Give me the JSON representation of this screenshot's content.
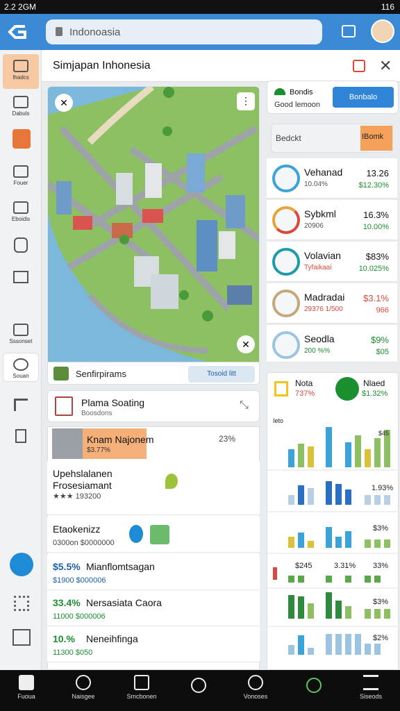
{
  "status_bar": {
    "time": "2.2 2GM",
    "battery": "116"
  },
  "top_bar": {
    "search": "Indonoasia"
  },
  "sidebar": {
    "items": [
      "Ihadcs",
      "Dabuls",
      "Fouer",
      "Eboidis",
      "Sssonset",
      "Souan"
    ]
  },
  "header": {
    "title": "Simjapan Inhonesia"
  },
  "map_card": {
    "footer": "Senfirpirams",
    "button": "Tosoid litt"
  },
  "search_card": {
    "title": "Plama Soating",
    "subtitle": "Boosdons"
  },
  "list": {
    "header": {
      "title": "Knam Najonem",
      "value": "$3.77%",
      "badge": "23%"
    },
    "items": [
      {
        "value": "",
        "title": "Upehslalanen Frosesiamant",
        "sub": "★★★ 193200"
      },
      {
        "value": "",
        "title": "Etaokenizz",
        "sub": "0300on $0000000"
      },
      {
        "value": "$5.5%",
        "title": "Mianflomtsagan",
        "sub": "$1900 $000006"
      },
      {
        "value": "33.4%",
        "title": "Nersasiata Caora",
        "sub": "11000 $000006"
      },
      {
        "value": "10.%",
        "title": "Neneihfinga",
        "sub": "11300 $050"
      }
    ]
  },
  "right_panel": {
    "promo": {
      "title": "Bondis",
      "subtitle": "Good lemoon",
      "button": "Bonbalo"
    },
    "search": {
      "placeholder": "Bedckt",
      "button": "IBomk"
    },
    "rows": [
      {
        "name": "Vehanad",
        "sub": "10.04%",
        "value": "13.26",
        "sub_value": "$12.30%"
      },
      {
        "name": "Sybkml",
        "sub": "20906",
        "value": "16.3%",
        "sub_value": "10.00%"
      },
      {
        "name": "Volavian",
        "sub": "Tyfaikaai",
        "value": "$83%",
        "sub_value": "10.025%"
      },
      {
        "name": "Madradai",
        "sub": "29376 1/500",
        "value": "$3.1%",
        "sub_value": "966"
      },
      {
        "name": "Seodla",
        "sub": "200 %%",
        "value": "$9%",
        "sub_value": "$05"
      }
    ]
  },
  "stats": {
    "left": {
      "title": "Nota",
      "value": "737%"
    },
    "right": {
      "title": "Nlaed",
      "value": "$1.32%"
    },
    "labels": [
      "Ieto",
      "$45",
      "1.93%",
      "$3%",
      "$245",
      "3.31%",
      "33%",
      "$3%",
      "$2%"
    ]
  },
  "bottom_nav": {
    "items": [
      "Fuoua",
      "Naisgee",
      "Smcbonen",
      "Vonoses",
      "Siseods"
    ]
  }
}
